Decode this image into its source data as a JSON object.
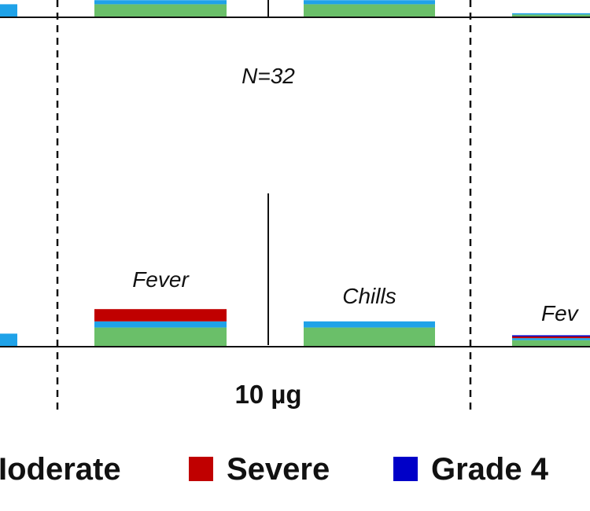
{
  "chart_data": {
    "type": "bar",
    "title": "",
    "xlabel": "",
    "ylabel": "",
    "colors": {
      "mild": "#6abf69",
      "moderate": "#1fa2e8",
      "severe": "#c00000",
      "grade4": "#0000c8"
    },
    "top_panel": {
      "note": "N=32",
      "bars": [
        {
          "group": "left-edge",
          "values": {
            "mild": 0,
            "moderate": 3
          }
        },
        {
          "group": "10 µg",
          "values": {
            "mild": 3,
            "moderate": 1
          }
        },
        {
          "group": "10 µg",
          "values": {
            "mild": 3,
            "moderate": 1
          }
        },
        {
          "group": "right-edge",
          "values": {
            "mild": 0.5,
            "moderate": 0.3
          }
        }
      ]
    },
    "bottom_panel": {
      "dose_label": "10 µg",
      "bars": [
        {
          "group": "left-edge",
          "label": "",
          "values": {
            "mild": 0,
            "moderate": 3,
            "severe": 0,
            "grade4": 0
          }
        },
        {
          "group": "10 µg",
          "label": "Fever",
          "values": {
            "mild": 4.5,
            "moderate": 1.5,
            "severe": 3,
            "grade4": 0
          }
        },
        {
          "group": "10 µg",
          "label": "Chills",
          "values": {
            "mild": 4.5,
            "moderate": 1.5,
            "severe": 0,
            "grade4": 0
          }
        },
        {
          "group": "right-edge",
          "label": "Fev",
          "values": {
            "mild": 1.4,
            "moderate": 0.5,
            "severe": 0.4,
            "grade4": 0.3
          }
        }
      ]
    },
    "legend": [
      {
        "label": "Moderate",
        "display": "Ioderate",
        "color": "#1fa2e8"
      },
      {
        "label": "Severe",
        "display": "Severe",
        "color": "#c00000"
      },
      {
        "label": "Grade 4",
        "display": "Grade 4",
        "color": "#0000c8"
      }
    ]
  }
}
